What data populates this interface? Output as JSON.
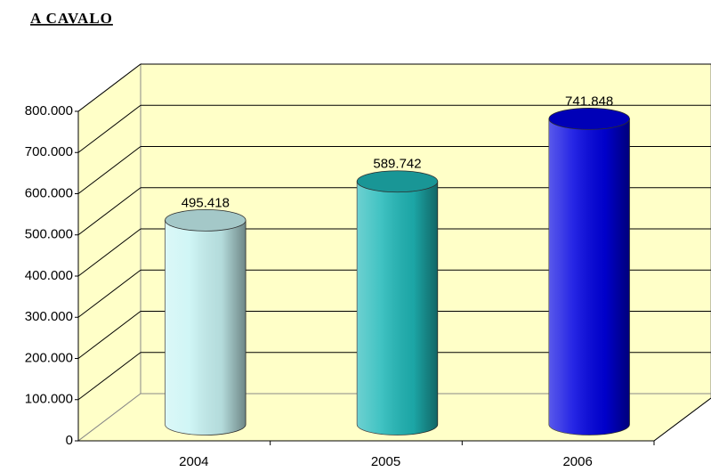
{
  "chart_data": {
    "type": "bar3d",
    "title": "A CAVALO",
    "categories": [
      "2004",
      "2005",
      "2006"
    ],
    "values": [
      495418,
      589742,
      741848
    ],
    "value_labels": [
      "495.418",
      "589.742",
      "741.848"
    ],
    "colors": [
      "#c8f4f4",
      "#1fb8b8",
      "#0000e0"
    ],
    "ylim": [
      0,
      800000
    ],
    "yticks": [
      0,
      {
        "value": 100000,
        "label": "100.000"
      },
      {
        "value": 200000,
        "label": "200.000"
      },
      {
        "value": 300000,
        "label": "300.000"
      },
      {
        "value": 400000,
        "label": "400.000"
      },
      {
        "value": 500000,
        "label": "500.000"
      },
      {
        "value": 600000,
        "label": "600.000"
      },
      {
        "value": 700000,
        "label": "700.000"
      },
      {
        "value": 800000,
        "label": "800.000"
      }
    ],
    "grid": true
  }
}
